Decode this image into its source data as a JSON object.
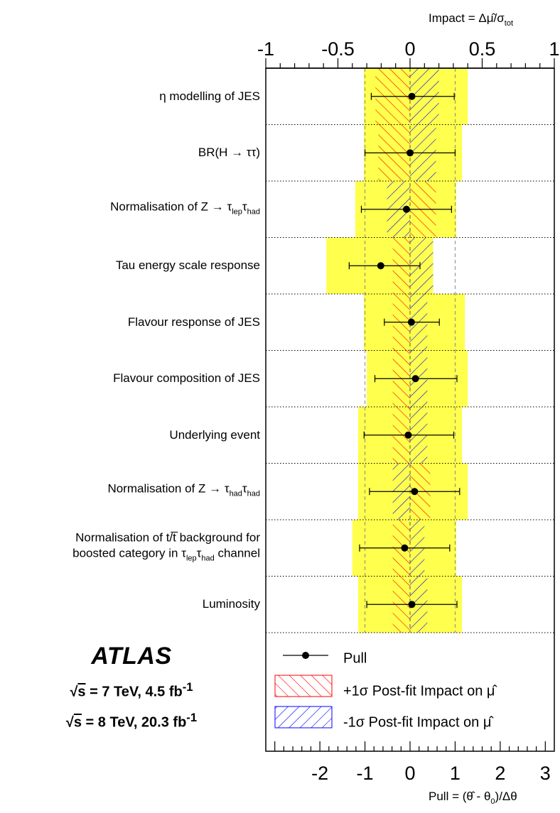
{
  "chart_data": {
    "type": "ranking-pull-impact",
    "top_axis": {
      "label": "Impact = Δμ̂/σtot",
      "label_main": "Impact = Δμ̂/σ",
      "label_sub": "tot",
      "range": [
        -1,
        1
      ],
      "tick_labels": [
        "-1",
        "-0.5",
        "0",
        "0.5",
        "1"
      ]
    },
    "bottom_axis": {
      "label": "Pull = (θ̂ - θ0)/Δθ",
      "label_part1": "Pull = (θ̂ - θ",
      "label_sub": "0",
      "label_part2": ")/Δθ",
      "range": [
        -3.2,
        3.2
      ],
      "tick_labels": [
        "-2",
        "-1",
        "0",
        "1",
        "2",
        "3"
      ]
    },
    "nuisance_parameters": [
      {
        "name": "η modelling of JES",
        "line1": [
          "η modelling of JES"
        ],
        "pull": 0.04,
        "pull_err_low": 0.9,
        "pull_err_high": 0.94,
        "impact_plus": -0.24,
        "impact_minus": 0.2,
        "prefit_impact_plus": -0.32,
        "prefit_impact_minus": 0.4
      },
      {
        "name": "BR(H → ττ)",
        "line1": [
          "BR(H → ττ)"
        ],
        "pull": 0.0,
        "pull_err_low": 1.0,
        "pull_err_high": 1.0,
        "impact_plus": -0.22,
        "impact_minus": 0.18,
        "prefit_impact_plus": -0.32,
        "prefit_impact_minus": 0.36
      },
      {
        "name": "Normalisation of Z → τlepτhad",
        "line1": [
          "Normalisation of Z → τ",
          "lep",
          "τ",
          "had"
        ],
        "pull": -0.08,
        "pull_err_low": 1.0,
        "pull_err_high": 1.0,
        "impact_plus": 0.18,
        "impact_minus": -0.16,
        "prefit_impact_plus": -0.38,
        "prefit_impact_minus": 0.32
      },
      {
        "name": "Tau energy scale response",
        "line1": [
          "Tau energy scale response"
        ],
        "pull": -0.65,
        "pull_err_low": 0.7,
        "pull_err_high": 0.87,
        "impact_plus": -0.12,
        "impact_minus": 0.16,
        "prefit_impact_plus": -0.58,
        "prefit_impact_minus": 0.16
      },
      {
        "name": "Flavour response of JES",
        "line1": [
          "Flavour response of JES"
        ],
        "pull": 0.03,
        "pull_err_low": 0.6,
        "pull_err_high": 0.62,
        "impact_plus": -0.12,
        "impact_minus": 0.12,
        "prefit_impact_plus": -0.32,
        "prefit_impact_minus": 0.38
      },
      {
        "name": "Flavour composition of JES",
        "line1": [
          "Flavour composition of JES"
        ],
        "pull": 0.12,
        "pull_err_low": 0.9,
        "pull_err_high": 0.92,
        "impact_plus": -0.12,
        "impact_minus": 0.12,
        "prefit_impact_plus": -0.3,
        "prefit_impact_minus": 0.4
      },
      {
        "name": "Underlying event",
        "line1": [
          "Underlying event"
        ],
        "pull": -0.04,
        "pull_err_low": 0.98,
        "pull_err_high": 1.01,
        "impact_plus": -0.12,
        "impact_minus": 0.12,
        "prefit_impact_plus": -0.36,
        "prefit_impact_minus": 0.36
      },
      {
        "name": "Normalisation of Z → τhadτhad",
        "line1": [
          "Normalisation of Z → τ",
          "had",
          "τ",
          "had"
        ],
        "pull": 0.1,
        "pull_err_low": 1.0,
        "pull_err_high": 1.0,
        "impact_plus": 0.14,
        "impact_minus": -0.12,
        "prefit_impact_plus": -0.36,
        "prefit_impact_minus": 0.4
      },
      {
        "name": "Normalisation of t/t̅ background for boosted category in τlepτhad channel",
        "line1": [
          "Normalisation of t/t̅ background for"
        ],
        "line2": [
          "boosted category in τ",
          "lep",
          "τ",
          "had",
          " channel"
        ],
        "pull": -0.12,
        "pull_err_low": 1.0,
        "pull_err_high": 1.0,
        "impact_plus": -0.12,
        "impact_minus": 0.1,
        "prefit_impact_plus": -0.4,
        "prefit_impact_minus": 0.32
      },
      {
        "name": "Luminosity",
        "line1": [
          "Luminosity"
        ],
        "pull": 0.04,
        "pull_err_low": 1.0,
        "pull_err_high": 1.0,
        "impact_plus": -0.12,
        "impact_minus": 0.12,
        "prefit_impact_plus": -0.36,
        "prefit_impact_minus": 0.36
      }
    ],
    "legend": [
      {
        "key": "pull",
        "label": "Pull"
      },
      {
        "key": "plus",
        "label": "+1σ Post-fit Impact on μ̂",
        "color": "#ff0000"
      },
      {
        "key": "minus",
        "label": "-1σ Post-fit Impact on μ̂",
        "color": "#0000ff"
      }
    ],
    "colors": {
      "prefit_band": "#ffff4d",
      "plus": "#ff0000",
      "minus": "#0000ff",
      "marker": "#000000",
      "dashed": "#888888"
    }
  },
  "atlas": {
    "label": "ATLAS",
    "energy_lines": [
      {
        "root": "s",
        "text": " = 7 TeV, 4.5 fb",
        "sup": "-1"
      },
      {
        "root": "s",
        "text": " = 8 TeV, 20.3 fb",
        "sup": "-1"
      }
    ]
  }
}
